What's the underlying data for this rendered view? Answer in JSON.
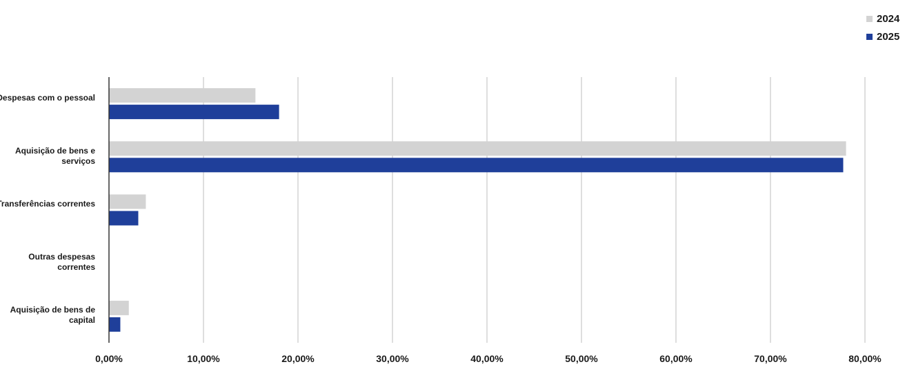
{
  "chart_data": {
    "type": "bar",
    "orientation": "horizontal",
    "categories": [
      "Despesas com o pessoal",
      "Aquisição de bens e serviços",
      "Transferências correntes",
      "Outras despesas correntes",
      "Aquisição de bens de capital"
    ],
    "series": [
      {
        "name": "2024",
        "values": [
          15.5,
          78.0,
          3.9,
          0.0,
          2.1
        ]
      },
      {
        "name": "2025",
        "values": [
          18.0,
          77.7,
          3.1,
          0.0,
          1.2
        ]
      }
    ],
    "xlim": [
      0,
      80
    ],
    "x_ticks": [
      "0,00%",
      "10,00%",
      "20,00%",
      "30,00%",
      "40,00%",
      "50,00%",
      "60,00%",
      "70,00%",
      "80,00%"
    ],
    "grid": "vertical",
    "legend_position": "top-right",
    "colors": {
      "2024": "#d3d3d3",
      "2025": "#1f3f9a"
    }
  }
}
